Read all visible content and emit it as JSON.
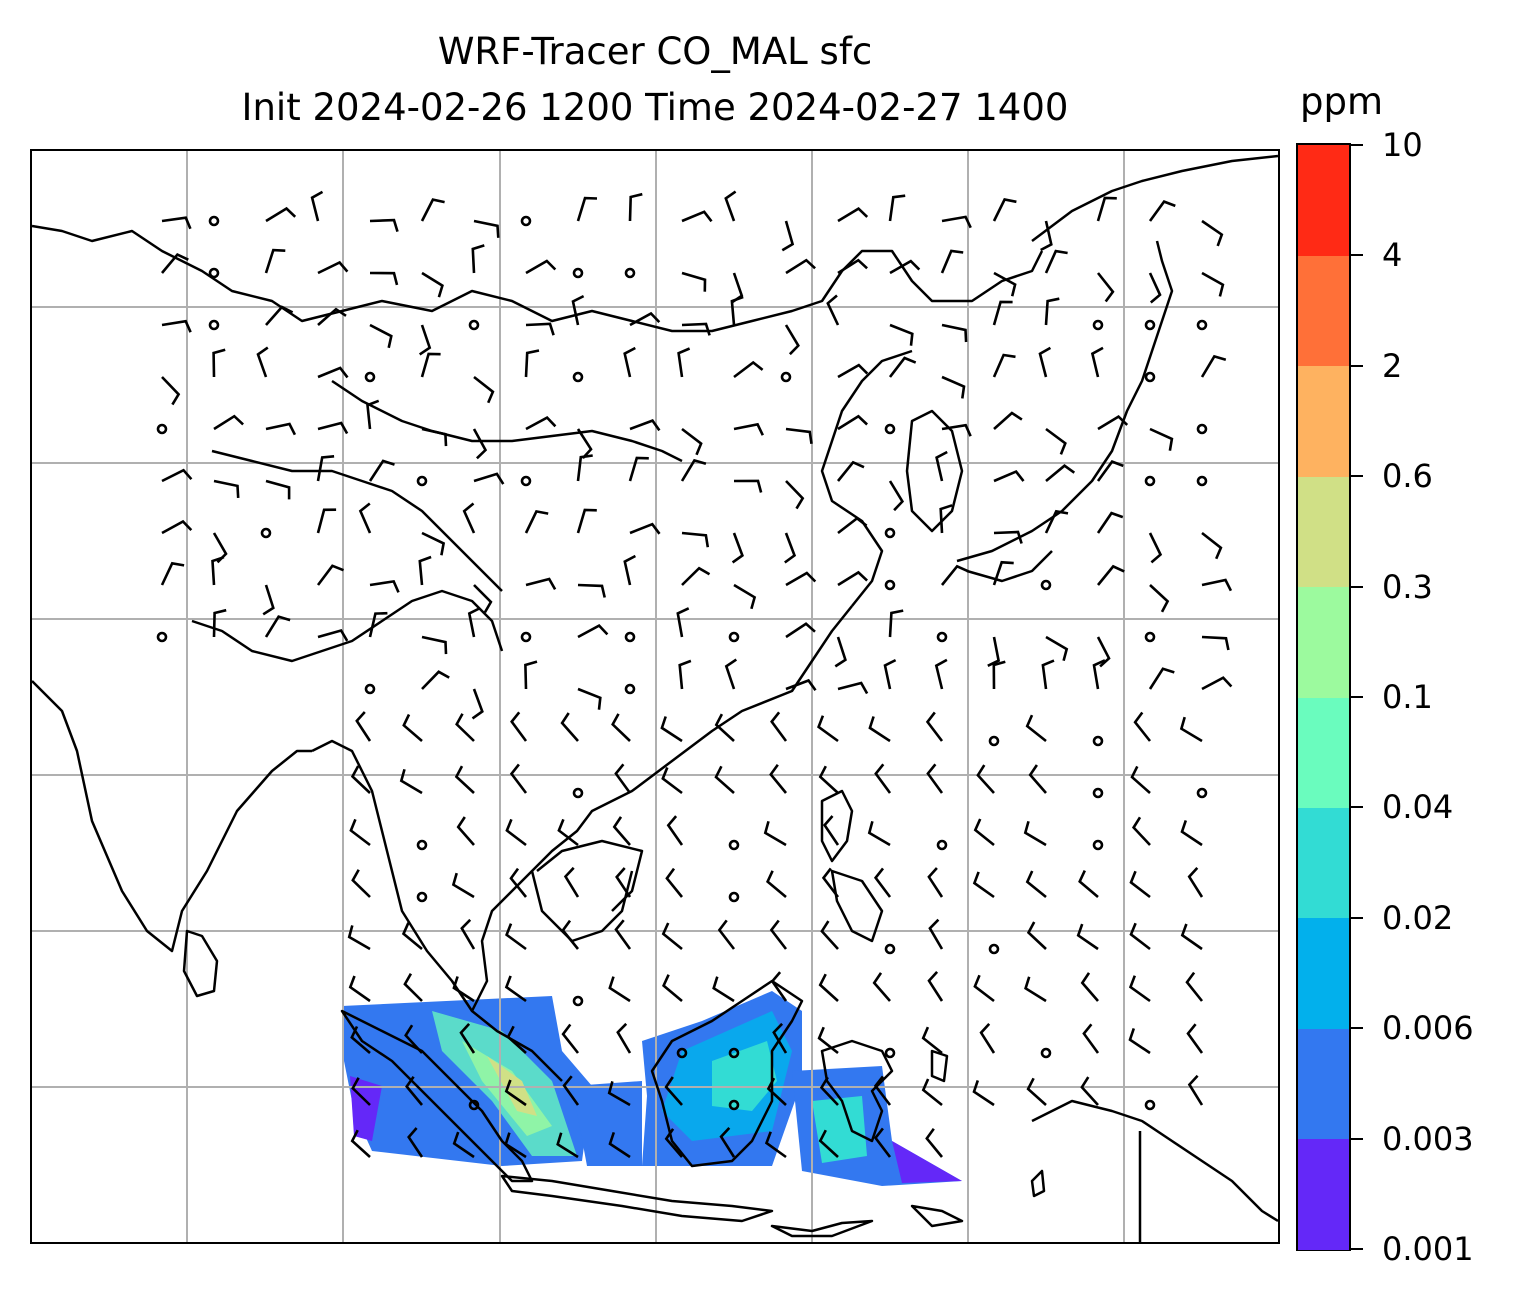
{
  "title": {
    "line1": "WRF-Tracer CO_MAL sfc",
    "line2": "Init 2024-02-26 1200 Time 2024-02-27 1400"
  },
  "colorbar": {
    "unit": "ppm",
    "ticks": [
      "0.001",
      "0.003",
      "0.006",
      "0.02",
      "0.04",
      "0.1",
      "0.3",
      "0.6",
      "2",
      "4",
      "10"
    ],
    "colors": [
      "#6428f8",
      "#3378f0",
      "#02b0ec",
      "#32dcd4",
      "#6afcbe",
      "#9cfa9e",
      "#d0e086",
      "#feb260",
      "#ff7038",
      "#ff2a15"
    ]
  },
  "map": {
    "projection": "PlateCarree",
    "grid": true,
    "coastlines": true,
    "borders": true,
    "field": "CO_MAL tracer concentration (shaded, ppm)",
    "overlay": "wind barbs"
  }
}
